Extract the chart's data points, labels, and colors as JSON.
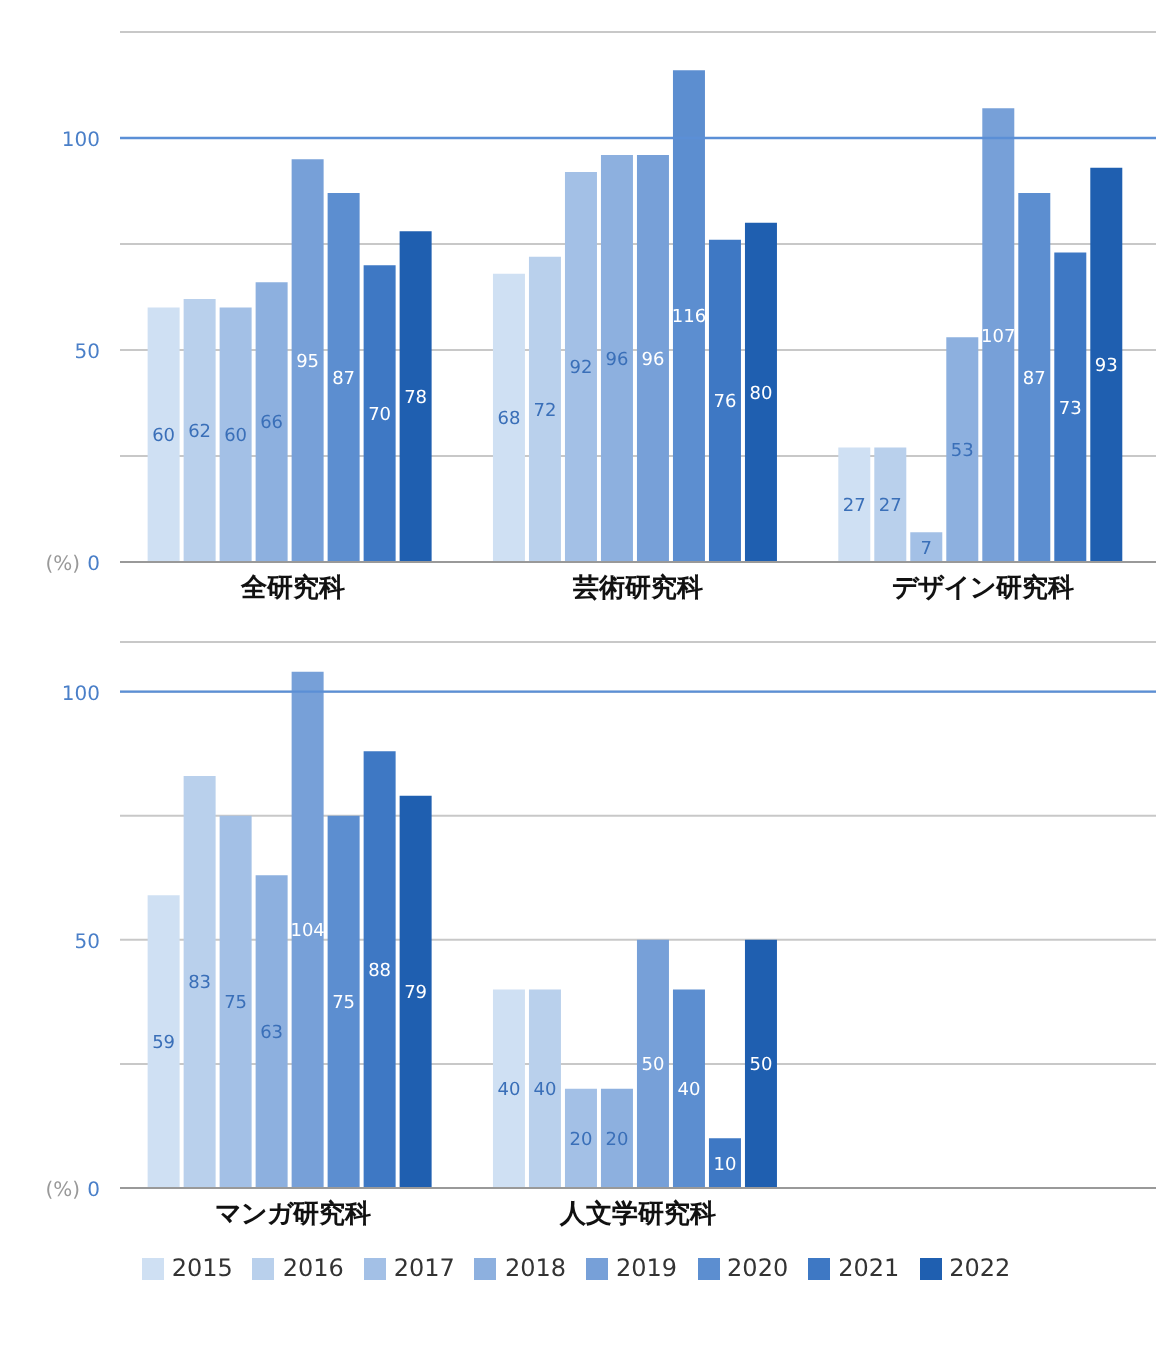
{
  "chart_data": [
    {
      "type": "bar",
      "categories": [
        "全研究科",
        "芸術研究科",
        "デザイン研究科"
      ],
      "ylabel": "(%)",
      "ylim": [
        0,
        125
      ],
      "yticks": [
        0,
        {
          "value": 25,
          "label": null
        },
        50,
        {
          "value": 75,
          "label": null
        },
        100,
        {
          "value": 125,
          "label": null
        }
      ],
      "grid": "y",
      "legend": false,
      "data_labels": true,
      "ref_lines": [
        {
          "axis": "y",
          "value": 100,
          "color": "#5b8fd6"
        }
      ],
      "series": [
        {
          "color": "#cfe0f3",
          "values": [
            60,
            68,
            27
          ]
        },
        {
          "color": "#b9d0ec",
          "values": [
            62,
            72,
            27
          ]
        },
        {
          "color": "#a3c0e6",
          "values": [
            60,
            92,
            7
          ]
        },
        {
          "color": "#8db0df",
          "values": [
            66,
            96,
            53
          ]
        },
        {
          "color": "#77a0d8",
          "values": [
            95,
            96,
            107
          ]
        },
        {
          "color": "#5c8ed0",
          "values": [
            87,
            116,
            87
          ]
        },
        {
          "color": "#3e78c4",
          "values": [
            70,
            76,
            73
          ]
        },
        {
          "color": "#1f5fb0",
          "values": [
            78,
            80,
            93
          ]
        }
      ]
    },
    {
      "type": "bar",
      "categories": [
        "マンガ研究科",
        "人文学研究科",
        null
      ],
      "ylabel": "(%)",
      "ylim": [
        0,
        110
      ],
      "yticks": [
        0,
        {
          "value": 25,
          "label": null
        },
        50,
        {
          "value": 75,
          "label": null
        },
        100
      ],
      "grid": "y",
      "legend": "bottom",
      "data_labels": true,
      "ref_lines": [
        {
          "axis": "y",
          "value": 100,
          "color": "#5b8fd6"
        }
      ],
      "series": [
        {
          "name": "2015",
          "color": "#cfe0f3",
          "values": [
            59,
            40,
            null
          ]
        },
        {
          "name": "2016",
          "color": "#b9d0ec",
          "values": [
            83,
            40,
            null
          ]
        },
        {
          "name": "2017",
          "color": "#a3c0e6",
          "values": [
            75,
            20,
            null
          ]
        },
        {
          "name": "2018",
          "color": "#8db0df",
          "values": [
            63,
            20,
            null
          ]
        },
        {
          "name": "2019",
          "color": "#77a0d8",
          "values": [
            104,
            50,
            null
          ]
        },
        {
          "name": "2020",
          "color": "#5c8ed0",
          "values": [
            75,
            40,
            null
          ]
        },
        {
          "name": "2021",
          "color": "#3e78c4",
          "values": [
            88,
            10,
            null
          ]
        },
        {
          "name": "2022",
          "color": "#1f5fb0",
          "values": [
            79,
            50,
            null
          ]
        }
      ]
    }
  ]
}
